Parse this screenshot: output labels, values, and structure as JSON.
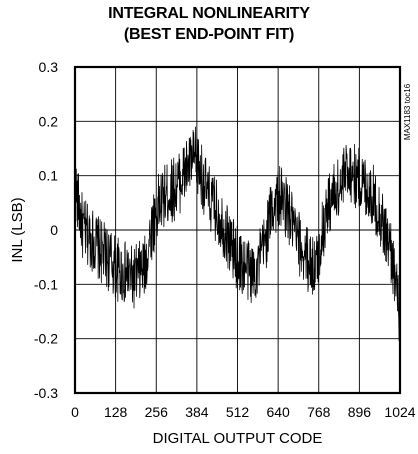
{
  "chart_data": {
    "type": "line",
    "title": "INTEGRAL NONLINEARITY",
    "subtitle": "(BEST END-POINT FIT)",
    "xlabel": "DIGITAL OUTPUT CODE",
    "ylabel": "INL (LSB)",
    "xlim": [
      0,
      1024
    ],
    "ylim": [
      -0.3,
      0.3
    ],
    "xticks": [
      "0",
      "128",
      "256",
      "384",
      "512",
      "640",
      "768",
      "896",
      "1024"
    ],
    "yticks": [
      "0.3",
      "0.2",
      "0.1",
      "0",
      "-0.1",
      "-0.2",
      "-0.3"
    ],
    "grid": true,
    "note": "MAX1183 toc16",
    "series": [
      {
        "x": [
          0,
          10,
          25,
          40,
          60,
          80,
          100,
          115,
          130,
          150,
          165,
          180,
          200,
          220,
          240,
          260,
          280,
          300,
          320,
          340,
          360,
          380,
          400,
          420,
          440,
          460,
          480,
          500,
          520,
          540,
          560,
          580,
          600,
          620,
          640,
          660,
          680,
          700,
          720,
          740,
          760,
          780,
          800,
          820,
          840,
          860,
          880,
          900,
          920,
          940,
          960,
          980,
          1000,
          1010,
          1024
        ],
        "y": [
          0.08,
          0.05,
          0.0,
          -0.01,
          -0.02,
          -0.04,
          -0.05,
          -0.06,
          -0.07,
          -0.08,
          -0.08,
          -0.09,
          -0.08,
          -0.07,
          0.0,
          0.04,
          0.06,
          0.07,
          0.08,
          0.1,
          0.12,
          0.13,
          0.1,
          0.06,
          0.04,
          0.02,
          -0.01,
          -0.04,
          -0.06,
          -0.07,
          -0.08,
          -0.06,
          -0.02,
          0.04,
          0.06,
          0.05,
          0.02,
          -0.02,
          -0.04,
          -0.06,
          -0.07,
          0.0,
          0.05,
          0.07,
          0.08,
          0.12,
          0.1,
          0.09,
          0.08,
          0.06,
          0.03,
          -0.01,
          -0.05,
          -0.1,
          -0.16
        ]
      }
    ]
  }
}
